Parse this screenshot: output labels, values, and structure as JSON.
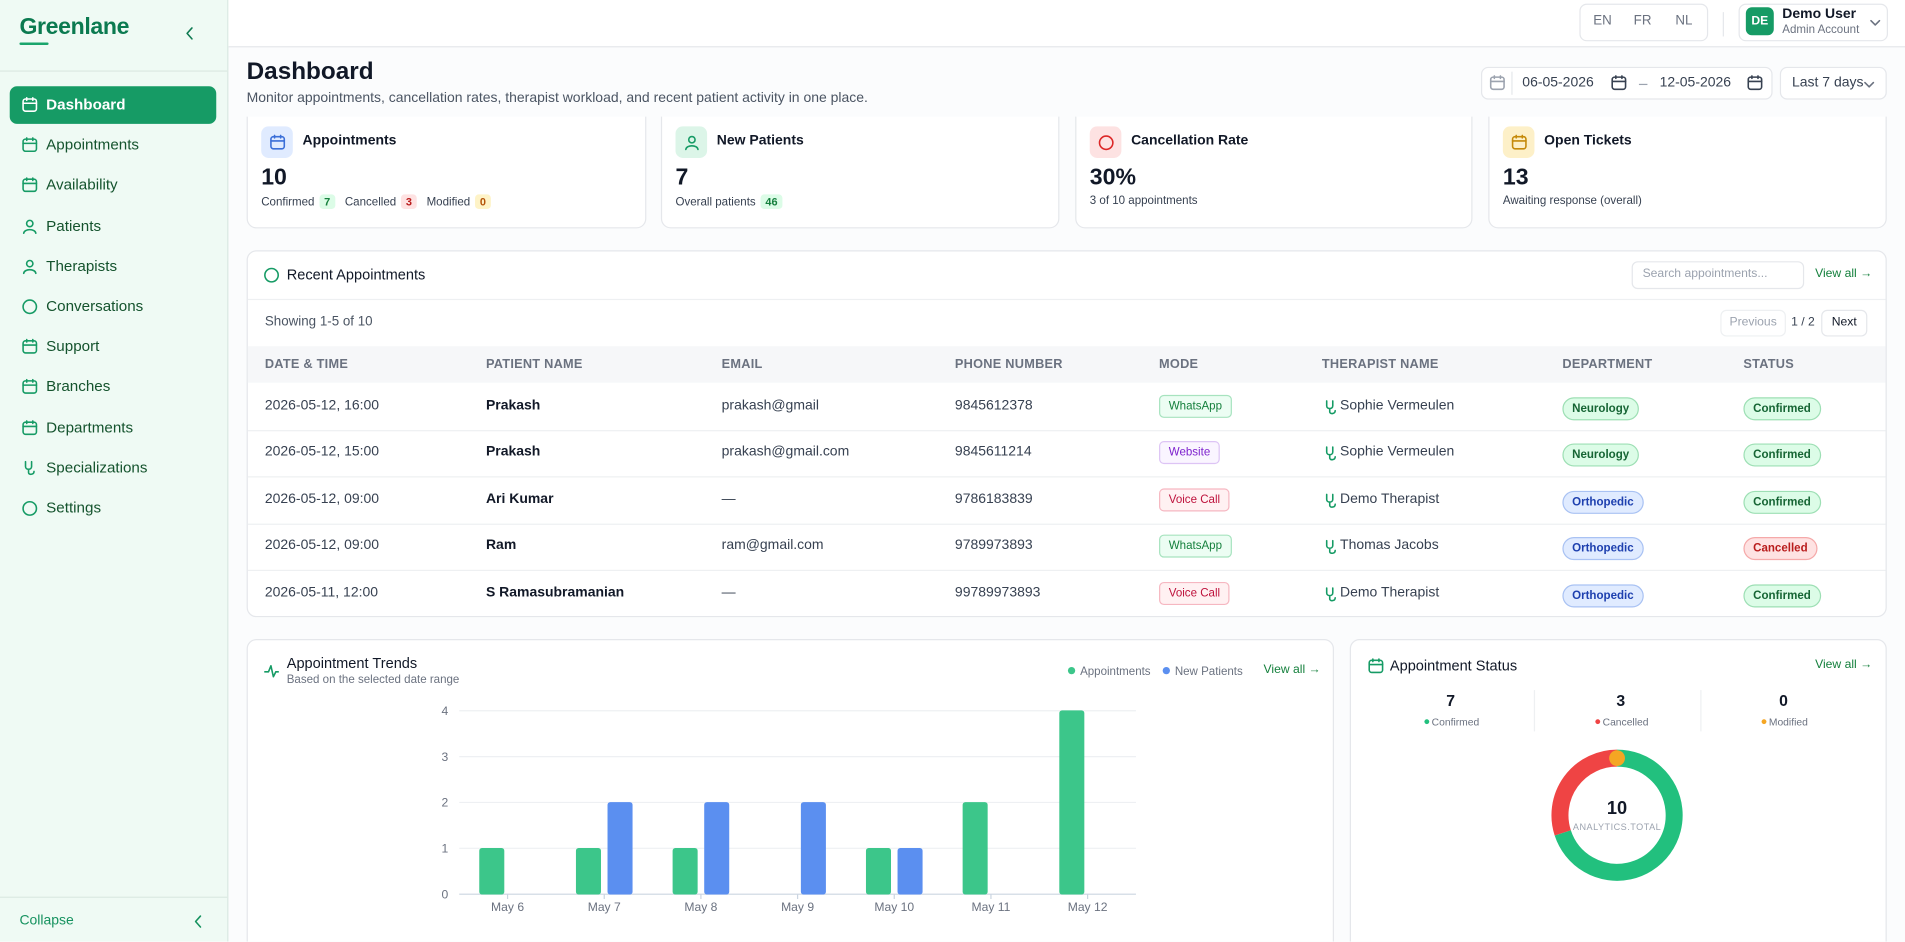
{
  "sidebar": {
    "brand": "Greenlane",
    "nav": [
      "Dashboard",
      "Appointments",
      "Availability",
      "Patients",
      "Therapists",
      "Conversations",
      "Support",
      "Branches",
      "Departments",
      "Specializations",
      "Settings"
    ],
    "collapse": "Collapse"
  },
  "topbar": {
    "languages": [
      "EN",
      "FR",
      "NL"
    ],
    "user": {
      "initials": "DE",
      "name": "Demo User",
      "role": "Admin Account"
    }
  },
  "header": {
    "title": "Dashboard",
    "subtitle": "Monitor appointments, cancellation rates, therapist workload, and recent patient activity in one place.",
    "date_from": "06-05-2026",
    "date_to": "12-05-2026",
    "range": "Last 7 days"
  },
  "stats": [
    {
      "title": "Appointments",
      "value": "10",
      "badges": [
        {
          "label": "Confirmed",
          "value": 7
        },
        {
          "label": "Cancelled",
          "value": 3
        },
        {
          "label": "Modified",
          "value": 0
        }
      ]
    },
    {
      "title": "New Patients",
      "value": "7",
      "badges": [
        {
          "label": "Overall patients",
          "value": 46
        }
      ]
    },
    {
      "title": "Cancellation Rate",
      "value": "30%",
      "note": "3 of 10 appointments"
    },
    {
      "title": "Open Tickets",
      "value": "13",
      "note": "Awaiting response (overall)"
    }
  ],
  "recent": {
    "title": "Recent Appointments",
    "search_placeholder": "Search appointments...",
    "link": "View all →",
    "showing": "Showing 1-5 of 10",
    "previous": "Previous",
    "page": "1 / 2",
    "next": "Next"
  },
  "table": {
    "columns": [
      "DATE & TIME",
      "PATIENT NAME",
      "EMAIL",
      "PHONE NUMBER",
      "MODE",
      "THERAPIST NAME",
      "DEPARTMENT",
      "STATUS"
    ],
    "rows": [
      [
        "2026-05-12, 16:00",
        "Prakash",
        "prakash@gmail",
        "9845612378",
        "WhatsApp",
        "Sophie Vermeulen",
        "Neurology",
        "Confirmed"
      ],
      [
        "2026-05-12, 15:00",
        "Prakash",
        "prakash@gmail.com",
        "9845611214",
        "Website",
        "Sophie Vermeulen",
        "Neurology",
        "Confirmed"
      ],
      [
        "2026-05-12, 09:00",
        "Ari Kumar",
        "—",
        "9786183839",
        "Voice Call",
        "Demo Therapist",
        "Orthopedic",
        "Confirmed"
      ],
      [
        "2026-05-12, 09:00",
        "Ram",
        "ram@gmail.com",
        "9789973893",
        "WhatsApp",
        "Thomas Jacobs",
        "Orthopedic",
        "Cancelled"
      ],
      [
        "2026-05-11, 12:00",
        "S Ramasubramanian",
        "—",
        "99789973893",
        "Voice Call",
        "Demo Therapist",
        "Orthopedic",
        "Confirmed"
      ]
    ]
  },
  "chart_data": [
    {
      "type": "bar",
      "title": "Appointment Trends",
      "subtitle": "Based on the selected date range",
      "link": "View all →",
      "categories": [
        "May 6",
        "May 7",
        "May 8",
        "May 9",
        "May 10",
        "May 11",
        "May 12"
      ],
      "series": [
        {
          "name": "Appointments",
          "color": "#3cc68a",
          "values": [
            1,
            1,
            1,
            0,
            1,
            2,
            4
          ]
        },
        {
          "name": "New Patients",
          "color": "#5b8ff0",
          "values": [
            0,
            2,
            2,
            2,
            1,
            0,
            0
          ]
        }
      ],
      "ylim": [
        0,
        4
      ],
      "yticks": [
        0,
        1,
        2,
        3,
        4
      ],
      "grid": true
    },
    {
      "type": "pie",
      "title": "Appointment Status",
      "link": "View all →",
      "categories": [
        "Confirmed",
        "Cancelled",
        "Modified"
      ],
      "values": [
        7,
        3,
        0
      ],
      "colors": [
        "#22c07e",
        "#ef4444",
        "#f5a623"
      ],
      "total": 10,
      "total_label": "ANALYTICS.TOTAL"
    }
  ]
}
